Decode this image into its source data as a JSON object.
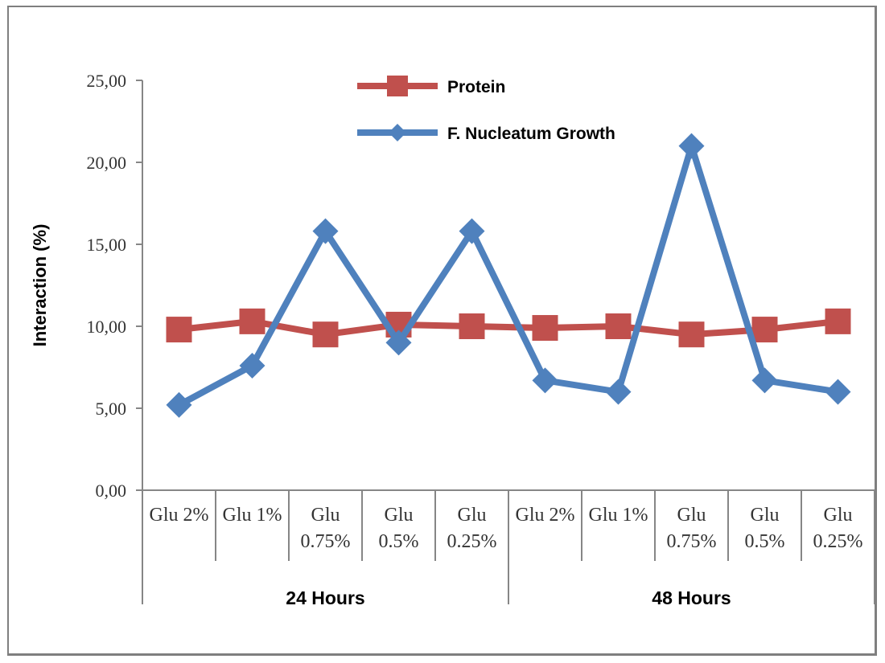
{
  "chart_data": {
    "type": "line",
    "ylabel": "Interaction (%)",
    "ylim": [
      0,
      25
    ],
    "yticks": [
      "0,00",
      "5,00",
      "10,00",
      "15,00",
      "20,00",
      "25,00"
    ],
    "categories": [
      [
        "Glu 2%"
      ],
      [
        "Glu 1%"
      ],
      [
        "Glu",
        "0.75%"
      ],
      [
        "Glu",
        "0.5%"
      ],
      [
        "Glu",
        "0.25%"
      ],
      [
        "Glu 2%"
      ],
      [
        "Glu 1%"
      ],
      [
        "Glu",
        "0.75%"
      ],
      [
        "Glu",
        "0.5%"
      ],
      [
        "Glu",
        "0.25%"
      ]
    ],
    "groups": [
      {
        "label": "24 Hours",
        "span": 5
      },
      {
        "label": "48 Hours",
        "span": 5
      }
    ],
    "grid": false,
    "legend_position": "top-center",
    "series": [
      {
        "name": "Protein",
        "color": "#c0504d",
        "marker": "square",
        "values": [
          9.8,
          10.3,
          9.5,
          10.1,
          10.0,
          9.9,
          10.0,
          9.5,
          9.8,
          10.3
        ]
      },
      {
        "name": "F. Nucleatum Growth",
        "color": "#4f81bd",
        "marker": "diamond",
        "values": [
          5.2,
          7.6,
          15.8,
          9.0,
          15.8,
          6.7,
          6.0,
          21.0,
          6.7,
          6.0
        ]
      }
    ]
  }
}
